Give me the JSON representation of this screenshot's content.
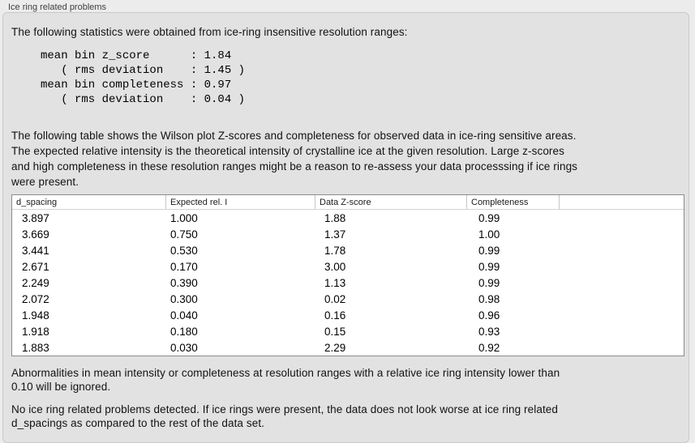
{
  "panel": {
    "title": "Ice ring related problems"
  },
  "intro": {
    "text": "The following statistics were obtained from ice-ring insensitive resolution ranges:",
    "stats_text": "mean bin z_score      : 1.84\n   ( rms deviation    : 1.45 )\nmean bin completeness : 0.97\n   ( rms deviation    : 0.04 )"
  },
  "table_section": {
    "description": "The following table shows the Wilson plot Z-scores and completeness for observed data in ice-ring sensitive areas.\nThe expected relative intensity is the theoretical intensity of crystalline ice at the given resolution. Large z-scores\nand high completeness in these resolution ranges might be a reason to re-assess your data processsing if ice rings\nwere present.",
    "table": {
      "headers": [
        "d_spacing",
        "Expected rel. I",
        "Data Z-score",
        "Completeness",
        ""
      ],
      "rows": [
        [
          "3.897",
          "1.000",
          "1.88",
          "0.99"
        ],
        [
          "3.669",
          "0.750",
          "1.37",
          "1.00"
        ],
        [
          "3.441",
          "0.530",
          "1.78",
          "0.99"
        ],
        [
          "2.671",
          "0.170",
          "3.00",
          "0.99"
        ],
        [
          "2.249",
          "0.390",
          "1.13",
          "0.99"
        ],
        [
          "2.072",
          "0.300",
          "0.02",
          "0.98"
        ],
        [
          "1.948",
          "0.040",
          "0.16",
          "0.96"
        ],
        [
          "1.918",
          "0.180",
          "0.15",
          "0.93"
        ],
        [
          "1.883",
          "0.030",
          "2.29",
          "0.92"
        ]
      ]
    }
  },
  "notes": {
    "abnormalities": "Abnormalities in mean intensity or completeness at resolution ranges with a relative ice ring intensity lower than\n0.10 will be ignored.",
    "conclusion": "No ice ring related problems detected. If ice rings were present, the data does not look worse at ice ring related\nd_spacings as compared to the rest of the data set."
  }
}
